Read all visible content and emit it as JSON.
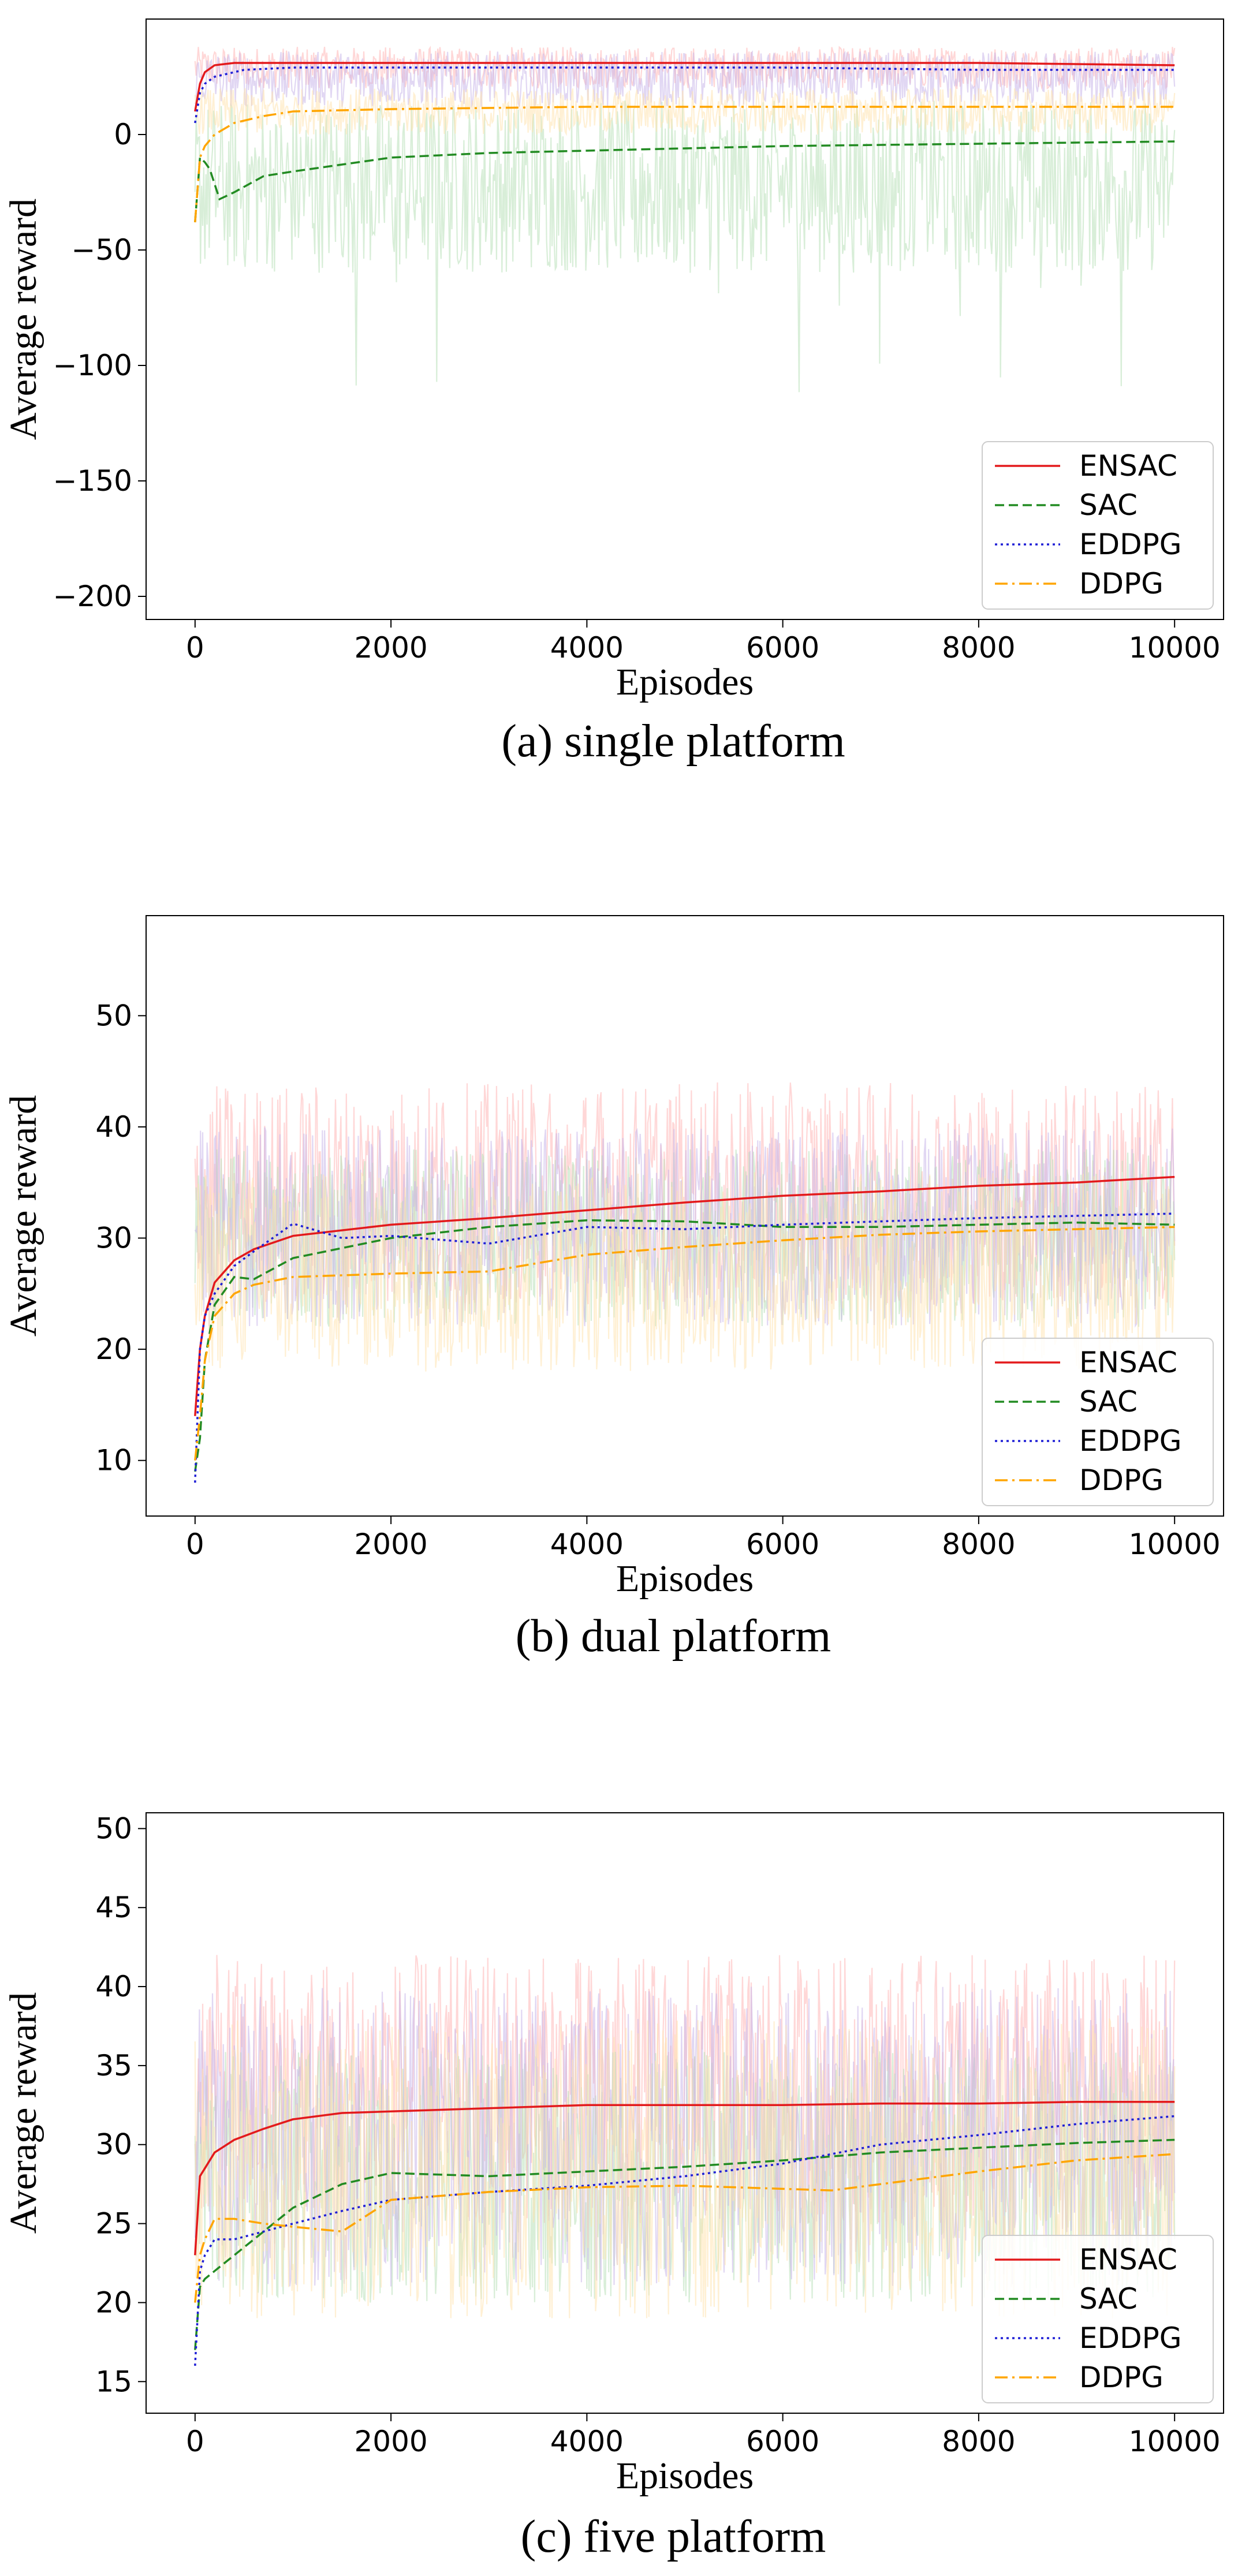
{
  "chart_data": [
    {
      "type": "line",
      "caption": "(a) single platform",
      "xlabel": "Episodes",
      "ylabel": "Average reward",
      "xlim": [
        -500,
        10500
      ],
      "ylim": [
        -210,
        50
      ],
      "xticks": [
        0,
        2000,
        4000,
        6000,
        8000,
        10000
      ],
      "yticks": [
        -200,
        -150,
        -100,
        -50,
        0
      ],
      "xtick_labels": [
        "0",
        "2000",
        "4000",
        "6000",
        "8000",
        "10000"
      ],
      "ytick_labels": [
        "−200",
        "−150",
        "−100",
        "−50",
        "0"
      ],
      "grid": false,
      "legend_position": "lower-right",
      "series": [
        {
          "name": "ENSAC",
          "color": "#e31a1c",
          "dash": "solid",
          "x": [
            0,
            50,
            100,
            200,
            400,
            1000,
            2000,
            4000,
            6000,
            8000,
            10000
          ],
          "y": [
            10,
            22,
            27,
            30,
            31,
            31,
            31,
            31,
            31,
            31,
            30
          ]
        },
        {
          "name": "SAC",
          "color": "#228b22",
          "dash": "dashed",
          "x": [
            0,
            50,
            100,
            150,
            250,
            400,
            700,
            1000,
            2000,
            3000,
            4000,
            6000,
            8000,
            10000
          ],
          "y": [
            -38,
            -10,
            -12,
            -15,
            -28,
            -25,
            -18,
            -16,
            -10,
            -8,
            -7,
            -5,
            -4,
            -3
          ]
        },
        {
          "name": "EDDPG",
          "color": "#1f1fd6",
          "dash": "dotted",
          "x": [
            0,
            50,
            100,
            200,
            500,
            1000,
            2000,
            4000,
            6000,
            8000,
            10000
          ],
          "y": [
            5,
            18,
            22,
            25,
            28,
            29,
            29,
            29,
            29,
            28,
            28
          ]
        },
        {
          "name": "DDPG",
          "color": "#ffa500",
          "dash": "dashdot",
          "x": [
            0,
            50,
            100,
            200,
            400,
            700,
            1000,
            2000,
            4000,
            6000,
            8000,
            10000
          ],
          "y": [
            -38,
            -10,
            -5,
            0,
            5,
            8,
            10,
            11,
            12,
            12,
            12,
            12
          ]
        }
      ],
      "noise_bands": [
        {
          "color": "#ffb6b6",
          "low": 20,
          "high": 38
        },
        {
          "color": "#b8e0b8",
          "low": -60,
          "high": 15,
          "spike_low": -140
        },
        {
          "color": "#c8b6ea",
          "low": 12,
          "high": 36
        },
        {
          "color": "#ffe3b0",
          "low": 0,
          "high": 20
        }
      ]
    },
    {
      "type": "line",
      "caption": "(b) dual platform",
      "xlabel": "Episodes",
      "ylabel": "Average reward",
      "xlim": [
        -500,
        10500
      ],
      "ylim": [
        5,
        59
      ],
      "xticks": [
        0,
        2000,
        4000,
        6000,
        8000,
        10000
      ],
      "yticks": [
        10,
        20,
        30,
        40,
        50
      ],
      "xtick_labels": [
        "0",
        "2000",
        "4000",
        "6000",
        "8000",
        "10000"
      ],
      "ytick_labels": [
        "10",
        "20",
        "30",
        "40",
        "50"
      ],
      "grid": false,
      "legend_position": "lower-right",
      "series": [
        {
          "name": "ENSAC",
          "color": "#e31a1c",
          "dash": "solid",
          "x": [
            0,
            50,
            100,
            200,
            400,
            600,
            1000,
            2000,
            3000,
            4000,
            5000,
            6000,
            7000,
            8000,
            9000,
            10000
          ],
          "y": [
            14,
            20,
            23,
            26,
            28,
            29,
            30.2,
            31.2,
            31.8,
            32.5,
            33.2,
            33.8,
            34.2,
            34.7,
            35.0,
            35.5
          ]
        },
        {
          "name": "SAC",
          "color": "#228b22",
          "dash": "dashed",
          "x": [
            0,
            50,
            100,
            200,
            400,
            600,
            1000,
            2000,
            3000,
            4000,
            5000,
            6000,
            7000,
            8000,
            9000,
            10000
          ],
          "y": [
            9,
            12,
            19,
            24,
            26.5,
            26.3,
            28.2,
            30.0,
            31.0,
            31.6,
            31.5,
            31.0,
            31.0,
            31.2,
            31.4,
            31.2
          ]
        },
        {
          "name": "EDDPG",
          "color": "#1f1fd6",
          "dash": "dotted",
          "x": [
            0,
            50,
            100,
            200,
            400,
            600,
            1000,
            1500,
            2000,
            3000,
            4000,
            5000,
            6000,
            7000,
            8000,
            9000,
            10000
          ],
          "y": [
            8,
            20,
            23,
            25,
            27.5,
            28.8,
            31.3,
            30.0,
            30.2,
            29.5,
            31.0,
            30.8,
            31.2,
            31.5,
            31.8,
            32.0,
            32.2
          ]
        },
        {
          "name": "DDPG",
          "color": "#ffa500",
          "dash": "dashdot",
          "x": [
            0,
            50,
            100,
            200,
            400,
            600,
            1000,
            2000,
            3000,
            4000,
            5000,
            6000,
            7000,
            8000,
            9000,
            10000
          ],
          "y": [
            10,
            14,
            19,
            23,
            25,
            25.8,
            26.5,
            26.8,
            27.0,
            28.5,
            29.2,
            29.8,
            30.3,
            30.6,
            30.8,
            31.0
          ]
        }
      ],
      "noise_bands": [
        {
          "color": "#ffb6b6",
          "low": 24,
          "high": 44
        },
        {
          "color": "#b8e0b8",
          "low": 22,
          "high": 38
        },
        {
          "color": "#c8b6ea",
          "low": 22,
          "high": 40
        },
        {
          "color": "#ffe3b0",
          "low": 18,
          "high": 36
        }
      ]
    },
    {
      "type": "line",
      "caption": "(c) five platform",
      "xlabel": "Episodes",
      "ylabel": "Average reward",
      "xlim": [
        -500,
        10500
      ],
      "ylim": [
        13,
        51
      ],
      "xticks": [
        0,
        2000,
        4000,
        6000,
        8000,
        10000
      ],
      "yticks": [
        15,
        20,
        25,
        30,
        35,
        40,
        45,
        50
      ],
      "xtick_labels": [
        "0",
        "2000",
        "4000",
        "6000",
        "8000",
        "10000"
      ],
      "ytick_labels": [
        "15",
        "20",
        "25",
        "30",
        "35",
        "40",
        "45",
        "50"
      ],
      "grid": false,
      "legend_position": "lower-right",
      "series": [
        {
          "name": "ENSAC",
          "color": "#e31a1c",
          "dash": "solid",
          "x": [
            0,
            50,
            100,
            200,
            400,
            700,
            1000,
            1500,
            2000,
            3000,
            4000,
            5000,
            6000,
            7000,
            8000,
            9000,
            10000
          ],
          "y": [
            23,
            28,
            28.5,
            29.5,
            30.3,
            31.0,
            31.6,
            32.0,
            32.1,
            32.3,
            32.5,
            32.5,
            32.5,
            32.6,
            32.6,
            32.7,
            32.7
          ]
        },
        {
          "name": "SAC",
          "color": "#228b22",
          "dash": "dashed",
          "x": [
            0,
            50,
            100,
            200,
            400,
            700,
            1000,
            1500,
            2000,
            3000,
            4000,
            5000,
            6000,
            7000,
            8000,
            9000,
            10000
          ],
          "y": [
            17,
            21,
            21.5,
            22,
            23,
            24.5,
            26.0,
            27.5,
            28.2,
            28.0,
            28.3,
            28.6,
            29.0,
            29.5,
            29.8,
            30.1,
            30.3
          ]
        },
        {
          "name": "EDDPG",
          "color": "#1f1fd6",
          "dash": "dotted",
          "x": [
            0,
            50,
            100,
            200,
            400,
            700,
            1000,
            1500,
            2000,
            3000,
            4000,
            5000,
            6000,
            7000,
            8000,
            9000,
            10000
          ],
          "y": [
            16,
            22,
            23,
            24,
            24,
            24.5,
            25.0,
            25.8,
            26.5,
            27.0,
            27.4,
            28.0,
            28.8,
            30.0,
            30.6,
            31.3,
            31.8
          ]
        },
        {
          "name": "DDPG",
          "color": "#ffa500",
          "dash": "dashdot",
          "x": [
            0,
            50,
            100,
            200,
            400,
            700,
            1000,
            1500,
            2000,
            3000,
            4000,
            5000,
            6000,
            6500,
            7000,
            8000,
            9000,
            10000
          ],
          "y": [
            20,
            23,
            24,
            25.3,
            25.3,
            25.0,
            24.8,
            24.5,
            26.5,
            27.0,
            27.3,
            27.4,
            27.2,
            27.1,
            27.5,
            28.3,
            29.0,
            29.4
          ]
        }
      ],
      "noise_bands": [
        {
          "color": "#ffb6b6",
          "low": 25,
          "high": 42
        },
        {
          "color": "#b8e0b8",
          "low": 20,
          "high": 36
        },
        {
          "color": "#c8b6ea",
          "low": 21,
          "high": 40
        },
        {
          "color": "#ffe3b0",
          "low": 19,
          "high": 38
        }
      ]
    }
  ]
}
